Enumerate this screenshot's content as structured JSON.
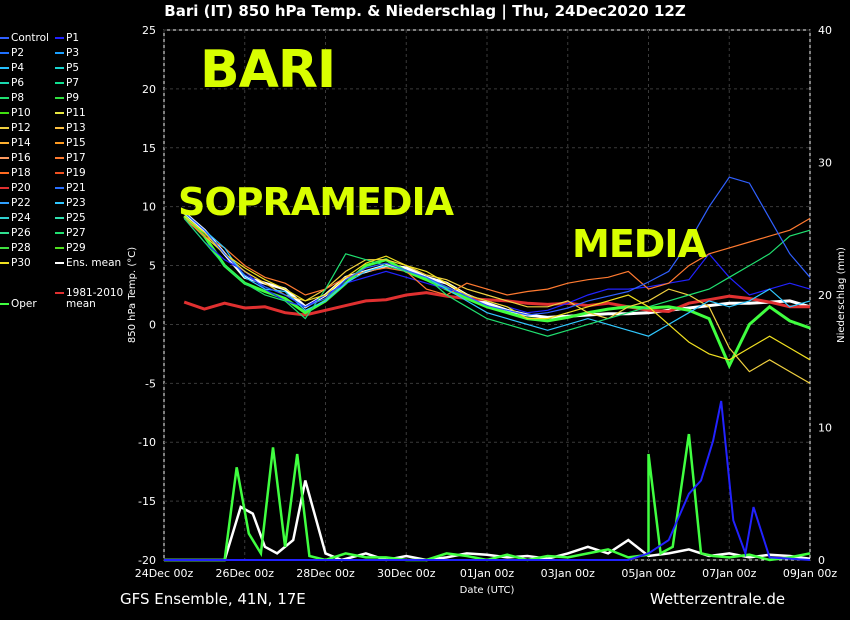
{
  "title": "Bari  (IT)  850 hPa Temp. & Niederschlag | Thu, 24Dec2020 12Z",
  "footer_left": "GFS Ensemble, 41N, 17E",
  "footer_right": "Wetterzentrale.de",
  "overlay": {
    "bari": "BARI",
    "sopramedia": "SOPRAMEDIA",
    "media": "MEDIA",
    "color": "#d9ff00"
  },
  "legend": [
    {
      "label": "Control",
      "color": "#3060ff"
    },
    {
      "label": "P1",
      "color": "#2222ff"
    },
    {
      "label": "P2",
      "color": "#1f70ff"
    },
    {
      "label": "P3",
      "color": "#1aa0ff"
    },
    {
      "label": "P4",
      "color": "#26c0ff"
    },
    {
      "label": "P5",
      "color": "#1ad4d0"
    },
    {
      "label": "P6",
      "color": "#1ad9b0"
    },
    {
      "label": "P7",
      "color": "#10e090"
    },
    {
      "label": "P8",
      "color": "#20e070"
    },
    {
      "label": "P9",
      "color": "#30e040"
    },
    {
      "label": "P10",
      "color": "#40e010"
    },
    {
      "label": "P11",
      "color": "#e8e840"
    },
    {
      "label": "P12",
      "color": "#f0d040"
    },
    {
      "label": "P13",
      "color": "#ffc040"
    },
    {
      "label": "P14",
      "color": "#ffb030"
    },
    {
      "label": "P15",
      "color": "#ff9a20"
    },
    {
      "label": "P16",
      "color": "#ff9a60"
    },
    {
      "label": "P17",
      "color": "#ff7a30"
    },
    {
      "label": "P18",
      "color": "#ff6a20"
    },
    {
      "label": "P19",
      "color": "#f05020"
    },
    {
      "label": "P20",
      "color": "#e03030"
    },
    {
      "label": "P21",
      "color": "#2a70ff"
    },
    {
      "label": "P22",
      "color": "#30a0ff"
    },
    {
      "label": "P23",
      "color": "#30c8ff"
    },
    {
      "label": "P24",
      "color": "#30d0d0"
    },
    {
      "label": "P25",
      "color": "#30e0b0"
    },
    {
      "label": "P26",
      "color": "#30e090"
    },
    {
      "label": "P27",
      "color": "#20e070"
    },
    {
      "label": "P28",
      "color": "#40e040"
    },
    {
      "label": "P29",
      "color": "#50e020"
    },
    {
      "label": "P30",
      "color": "#f0e020"
    },
    {
      "label": "Ens. mean",
      "color": "#ffffff"
    },
    {
      "label": "Oper",
      "color": "#40ff40"
    },
    {
      "label": "1981-2010\nmean",
      "color": "#e03030"
    }
  ],
  "chart_data": {
    "type": "line",
    "xlabel": "Date (UTC)",
    "ylabel": "850 hPa Temp. (°C)",
    "ylabel_right": "Niederschlag (mm)",
    "ylim": [
      -20,
      25
    ],
    "ylim_right": [
      0,
      40
    ],
    "yticks": [
      25,
      20,
      15,
      10,
      5,
      0,
      -5,
      -10,
      -15,
      -20
    ],
    "yticks_right": [
      40,
      30,
      20,
      10,
      0
    ],
    "x_ticklabels": [
      "24Dec 00z",
      "26Dec 00z",
      "28Dec 00z",
      "30Dec 00z",
      "01Jan 00z",
      "03Jan 00z",
      "05Jan 00z",
      "07Jan 00z",
      "09Jan 00z"
    ],
    "x_days": [
      0,
      16
    ],
    "grid": true,
    "series": [
      {
        "name": "Ens. mean",
        "color": "#ffffff",
        "x": [
          0.5,
          1,
          1.5,
          2,
          2.5,
          3,
          3.5,
          4,
          4.5,
          5,
          5.5,
          6,
          6.5,
          7,
          7.5,
          8,
          8.5,
          9,
          9.5,
          10,
          10.5,
          11,
          11.5,
          12,
          12.5,
          13,
          13.5,
          14,
          14.5,
          15,
          15.5,
          16
        ],
        "y": [
          9.5,
          8,
          6,
          4,
          3.5,
          3,
          1.5,
          2.5,
          4,
          4.5,
          5,
          4.8,
          4,
          3.5,
          2.5,
          1.8,
          1.2,
          0.8,
          0.6,
          0.7,
          0.8,
          0.9,
          0.9,
          1,
          1.2,
          1.4,
          1.6,
          1.8,
          1.8,
          1.9,
          2,
          1.5
        ]
      },
      {
        "name": "1981-2010\nmean",
        "color": "#e03030",
        "x": [
          0.5,
          1,
          1.5,
          2,
          2.5,
          3,
          3.5,
          4,
          4.5,
          5,
          5.5,
          6,
          6.5,
          7,
          7.5,
          8,
          8.5,
          9,
          9.5,
          10,
          10.5,
          11,
          11.5,
          12,
          12.5,
          13,
          13.5,
          14,
          14.5,
          15,
          15.5,
          16
        ],
        "y": [
          1.9,
          1.3,
          1.8,
          1.4,
          1.5,
          1,
          0.8,
          1.2,
          1.6,
          2,
          2.1,
          2.5,
          2.7,
          2.4,
          2.2,
          2.1,
          2,
          1.8,
          1.7,
          1.8,
          1.6,
          1.8,
          1.5,
          1.2,
          1.1,
          1.8,
          2.1,
          2.4,
          2.2,
          1.9,
          1.5,
          1.5
        ]
      },
      {
        "name": "Oper",
        "color": "#40ff40",
        "x": [
          0.5,
          1,
          1.5,
          2,
          2.5,
          3,
          3.5,
          4,
          4.5,
          5,
          5.5,
          6,
          6.5,
          7,
          7.5,
          8,
          8.5,
          9,
          9.5,
          10,
          10.5,
          11,
          11.5,
          12,
          12.5,
          13,
          13.5,
          14,
          14.5,
          15,
          15.5,
          16
        ],
        "y": [
          9.2,
          7.5,
          5,
          3.5,
          2.8,
          2.2,
          1,
          2,
          3.5,
          5,
          5.5,
          4.5,
          3.8,
          3,
          2.2,
          1.5,
          1,
          0.5,
          0.3,
          0.6,
          1,
          1.3,
          1.5,
          1.4,
          1.5,
          1.2,
          0.5,
          -3.5,
          0,
          1.5,
          0.3,
          -0.3
        ]
      },
      {
        "name": "P1",
        "color": "#2222ff",
        "x": [
          0.5,
          1,
          1.5,
          2,
          2.5,
          3,
          3.5,
          4,
          4.5,
          5,
          5.5,
          6,
          6.5,
          7,
          7.5,
          8,
          8.5,
          9,
          9.5,
          10,
          10.5,
          11,
          11.5,
          12,
          12.5,
          13,
          13.5,
          14,
          14.5,
          15,
          15.5,
          16
        ],
        "y": [
          9,
          7,
          5.5,
          4.5,
          3,
          2,
          1.5,
          2.5,
          3.5,
          4,
          4.5,
          4,
          3.5,
          3,
          2.5,
          2,
          1.5,
          1,
          1.2,
          1.8,
          2.5,
          3,
          3,
          3.2,
          3.5,
          3.8,
          6,
          4,
          2.5,
          3,
          3.5,
          3
        ]
      },
      {
        "name": "P12",
        "color": "#f0d040",
        "x": [
          0.5,
          1,
          1.5,
          2,
          2.5,
          3,
          3.5,
          4,
          4.5,
          5,
          5.5,
          6,
          6.5,
          7,
          7.5,
          8,
          8.5,
          9,
          9.5,
          10,
          10.5,
          11,
          11.5,
          12,
          12.5,
          13,
          13.5,
          14,
          14.5,
          15,
          15.5,
          16
        ],
        "y": [
          9,
          7.5,
          6,
          4.5,
          3.5,
          2.5,
          2,
          3,
          4.5,
          5.5,
          5.5,
          5,
          4.2,
          3.8,
          3,
          2.5,
          2,
          1.5,
          1.5,
          2,
          1,
          0.5,
          1.5,
          2,
          3,
          2.5,
          1.5,
          -2,
          -4,
          -3,
          -4,
          -5
        ]
      },
      {
        "name": "P17",
        "color": "#ff7a30",
        "x": [
          0.5,
          1,
          1.5,
          2,
          2.5,
          3,
          3.5,
          4,
          4.5,
          5,
          5.5,
          6,
          6.5,
          7,
          7.5,
          8,
          8.5,
          9,
          9.5,
          10,
          10.5,
          11,
          11.5,
          12,
          12.5,
          13,
          13.5,
          14,
          14.5,
          15,
          15.5,
          16
        ],
        "y": [
          9,
          7.5,
          6.5,
          5,
          4,
          3.5,
          2.5,
          3,
          4,
          4.5,
          4.8,
          4.5,
          3,
          2.5,
          3.5,
          3,
          2.5,
          2.8,
          3,
          3.5,
          3.8,
          4,
          4.5,
          3,
          3.5,
          5,
          6,
          6.5,
          7,
          7.5,
          8,
          9
        ]
      },
      {
        "name": "P23",
        "color": "#30c8ff",
        "x": [
          0.5,
          1,
          1.5,
          2,
          2.5,
          3,
          3.5,
          4,
          4.5,
          5,
          5.5,
          6,
          6.5,
          7,
          7.5,
          8,
          8.5,
          9,
          9.5,
          10,
          10.5,
          11,
          11.5,
          12,
          12.5,
          13,
          13.5,
          14,
          14.5,
          15,
          15.5,
          16
        ],
        "y": [
          9.5,
          8,
          6.5,
          4,
          3,
          2.8,
          1.2,
          2,
          3.5,
          4.5,
          5,
          4.5,
          4,
          3,
          2,
          1,
          0.5,
          0,
          -0.5,
          0,
          0.5,
          0,
          -0.5,
          -1,
          0,
          1,
          2,
          1.5,
          2,
          3,
          1.5,
          2
        ]
      },
      {
        "name": "P27",
        "color": "#20e070",
        "x": [
          0.5,
          1,
          1.5,
          2,
          2.5,
          3,
          3.5,
          4,
          4.5,
          5,
          5.5,
          6,
          6.5,
          7,
          7.5,
          8,
          8.5,
          9,
          9.5,
          10,
          10.5,
          11,
          11.5,
          12,
          12.5,
          13,
          13.5,
          14,
          14.5,
          15,
          15.5,
          16
        ],
        "y": [
          9,
          7,
          5,
          3.5,
          2.5,
          2,
          0.5,
          3,
          6,
          5.5,
          5,
          4.5,
          4,
          2.5,
          1.5,
          0.5,
          0,
          -0.5,
          -1,
          -0.5,
          0,
          0.5,
          1,
          1.5,
          2,
          2.5,
          3,
          4,
          5,
          6,
          7.5,
          8
        ]
      },
      {
        "name": "P30",
        "color": "#f0e020",
        "x": [
          0.5,
          1,
          1.5,
          2,
          2.5,
          3,
          3.5,
          4,
          4.5,
          5,
          5.5,
          6,
          6.5,
          7,
          7.5,
          8,
          8.5,
          9,
          9.5,
          10,
          10.5,
          11,
          11.5,
          12,
          12.5,
          13,
          13.5,
          14,
          14.5,
          15,
          15.5,
          16
        ],
        "y": [
          9.2,
          7.8,
          6,
          4.8,
          3.8,
          3,
          2,
          2.5,
          4,
          5.2,
          5.8,
          5,
          4.5,
          3.5,
          2.5,
          2,
          1.5,
          0.5,
          0.5,
          1,
          1.5,
          2,
          2.5,
          1.5,
          0,
          -1.5,
          -2.5,
          -3,
          -2,
          -1,
          -2,
          -3
        ]
      },
      {
        "name": "Control",
        "color": "#3060ff",
        "x": [
          0.5,
          1,
          1.5,
          2,
          2.5,
          3,
          3.5,
          4,
          4.5,
          5,
          5.5,
          6,
          6.5,
          7,
          7.5,
          8,
          8.5,
          9,
          9.5,
          10,
          10.5,
          11,
          11.5,
          12,
          12.5,
          13,
          13.5,
          14,
          14.5,
          15,
          15.5,
          16
        ],
        "y": [
          9.5,
          8,
          6,
          4.2,
          3.2,
          2.5,
          1.5,
          2.2,
          3.8,
          4.8,
          5.2,
          4.6,
          4,
          3.2,
          2.4,
          1.6,
          1.2,
          0.8,
          1,
          1.4,
          2,
          2.4,
          2.8,
          3.6,
          4.5,
          7,
          10,
          12.5,
          12,
          9,
          6,
          4
        ]
      }
    ],
    "precipitation": [
      {
        "name": "Ens. mean",
        "color": "#ffffff",
        "x": [
          0,
          1.5,
          1.9,
          2.2,
          2.5,
          2.8,
          3.2,
          3.5,
          4,
          4.4,
          5,
          5.5,
          6,
          6.5,
          7,
          7.5,
          8,
          8.5,
          9,
          9.5,
          10,
          10.5,
          11,
          11.5,
          12,
          12.5,
          13,
          13.5,
          14,
          14.5,
          15,
          15.5,
          16
        ],
        "y": [
          0,
          0,
          4,
          3.5,
          1,
          0.5,
          1.5,
          6,
          0.5,
          0,
          0.5,
          0,
          0.3,
          0,
          0.2,
          0.5,
          0.4,
          0.2,
          0.3,
          0.1,
          0.5,
          1,
          0.5,
          1.5,
          0.3,
          0.5,
          0.8,
          0.3,
          0.5,
          0.2,
          0.4,
          0.3,
          0.1
        ]
      },
      {
        "name": "Oper",
        "color": "#40ff40",
        "x": [
          0,
          1.5,
          1.8,
          2.1,
          2.4,
          2.7,
          3,
          3.3,
          3.6,
          4,
          4.5,
          5,
          5.5,
          6,
          6.5,
          7,
          7.5,
          8,
          8.5,
          9,
          9.5,
          10,
          10.5,
          11,
          11.5,
          12,
          12,
          12.3,
          12.6,
          13,
          13.3,
          13.6,
          14,
          14.5,
          15,
          15.5,
          16
        ],
        "y": [
          0,
          0,
          7,
          2,
          0.5,
          8.5,
          1,
          8,
          0.3,
          0,
          0.5,
          0.2,
          0.2,
          0,
          0,
          0.5,
          0.3,
          0,
          0.4,
          0,
          0.3,
          0.2,
          0.5,
          0.8,
          0.2,
          0.4,
          8,
          0.5,
          1,
          9.5,
          0.5,
          0.3,
          0.2,
          0.4,
          0,
          0.2,
          0.5
        ]
      },
      {
        "name": "P1",
        "color": "#2222ff",
        "x": [
          0,
          11.5,
          12,
          12.5,
          13,
          13.3,
          13.6,
          13.8,
          14.1,
          14.4,
          14.6,
          15,
          16
        ],
        "y": [
          0,
          0,
          0.5,
          1.5,
          5,
          6,
          9,
          12,
          3,
          0.5,
          4,
          0.2,
          0
        ]
      }
    ]
  }
}
